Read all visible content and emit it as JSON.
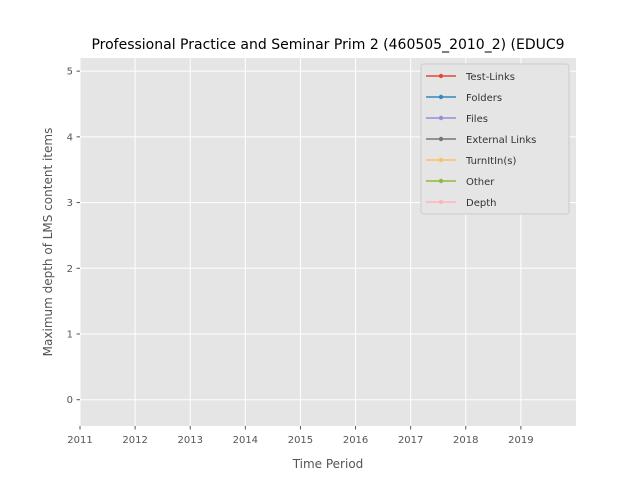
{
  "chart_data": {
    "type": "line",
    "title": "Professional Practice and Seminar Prim 2 (460505_2010_2) (EDUC9",
    "xlabel": "Time Period",
    "ylabel": "Maximum depth of LMS content items",
    "x_ticks": [
      "2011",
      "2012",
      "2013",
      "2014",
      "2015",
      "2016",
      "2017",
      "2018",
      "2019"
    ],
    "y_ticks": [
      "0",
      "1",
      "2",
      "3",
      "4",
      "5"
    ],
    "xlim": [
      2011,
      2020
    ],
    "ylim": [
      -0.4,
      5.2
    ],
    "grid": true,
    "legend_position": "top-right",
    "series": [
      {
        "name": "Test-Links",
        "color": "#E24A33",
        "values": []
      },
      {
        "name": "Folders",
        "color": "#348ABD",
        "values": []
      },
      {
        "name": "Files",
        "color": "#988ED5",
        "values": []
      },
      {
        "name": "External Links",
        "color": "#777777",
        "values": []
      },
      {
        "name": "TurnItIn(s)",
        "color": "#FBC15E",
        "values": []
      },
      {
        "name": "Other",
        "color": "#8EBA42",
        "values": []
      },
      {
        "name": "Depth",
        "color": "#FFB5B8",
        "values": []
      }
    ]
  }
}
